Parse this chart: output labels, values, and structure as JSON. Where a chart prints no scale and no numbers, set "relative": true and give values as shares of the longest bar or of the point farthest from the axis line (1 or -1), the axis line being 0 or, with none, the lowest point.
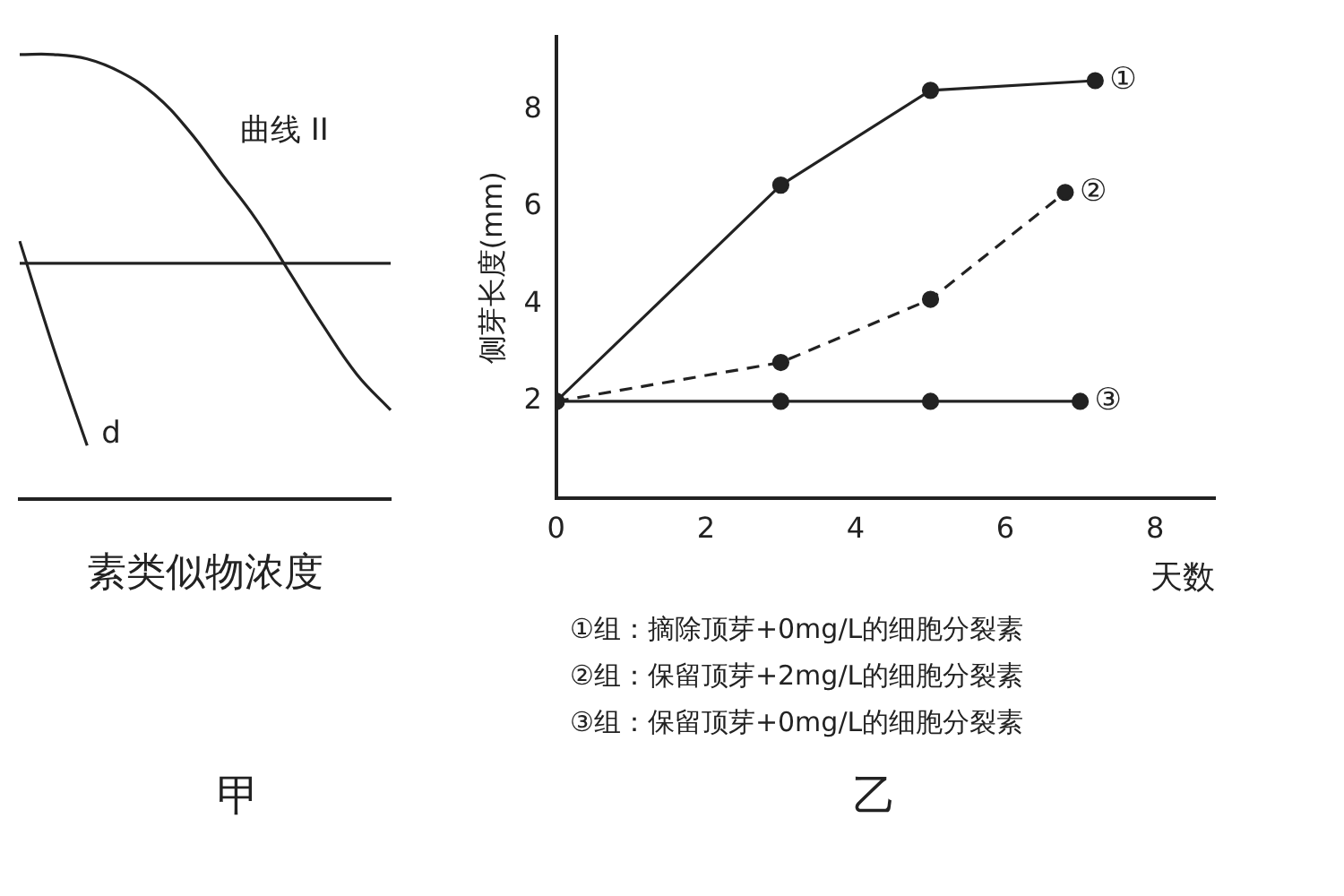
{
  "chart_data": [
    {
      "type": "line",
      "title": "甲",
      "xlabel": "素类似物浓度",
      "relative": true,
      "grid": false,
      "legend": false,
      "marker": "none",
      "categories": [
        null,
        null,
        null,
        null,
        null,
        null,
        null,
        null,
        null,
        null,
        null,
        null
      ],
      "series": [
        {
          "name": "曲线 II",
          "color": "#222222",
          "values": [
            1.0,
            1.0,
            0.99,
            0.96,
            0.91,
            0.83,
            0.73,
            0.63,
            0.51,
            0.39,
            0.28,
            0.2
          ]
        },
        {
          "color": "#222222",
          "values": [
            0.53,
            0.53,
            0.53,
            0.53,
            0.53,
            0.53,
            0.53,
            0.53,
            0.53,
            0.53,
            0.53,
            0.53
          ]
        },
        {
          "name": "d",
          "color": "#222222",
          "values": [
            0.58,
            0.34,
            0.12,
            null,
            null,
            null,
            null,
            null,
            null,
            null,
            null,
            null
          ]
        }
      ]
    },
    {
      "type": "line",
      "title": "乙",
      "xlabel": "天数",
      "ylabel": "侧芽长度(mm)",
      "xlim": [
        0,
        8.8
      ],
      "ylim": [
        0,
        9.5
      ],
      "xticks": [
        0,
        2,
        4,
        6,
        8
      ],
      "yticks": [
        2,
        4,
        6,
        8
      ],
      "grid": false,
      "legend": false,
      "marker": "circle",
      "annotations": [
        "①组：摘除顶芽+0mg/L的细胞分裂素",
        "②组：保留顶芽+2mg/L的细胞分裂素",
        "③组：保留顶芽+0mg/L的细胞分裂素"
      ],
      "series": [
        {
          "name": "①",
          "color": "#222222",
          "line_style": "solid",
          "x": [
            0,
            3,
            5,
            7.2
          ],
          "values": [
            2,
            6.45,
            8.4,
            8.6
          ]
        },
        {
          "name": "②",
          "color": "#222222",
          "line_style": "dashed",
          "x": [
            0,
            3,
            5,
            6.8
          ],
          "values": [
            2,
            2.8,
            4.1,
            6.3
          ]
        },
        {
          "name": "③",
          "color": "#222222",
          "line_style": "solid",
          "x": [
            0,
            3,
            5,
            7
          ],
          "values": [
            2,
            2,
            2,
            2
          ]
        }
      ]
    }
  ]
}
